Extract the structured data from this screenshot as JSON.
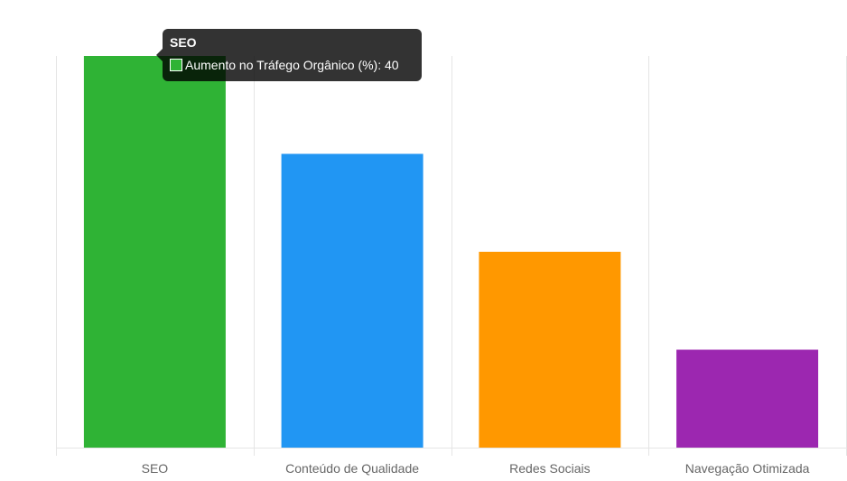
{
  "chart_data": {
    "type": "bar",
    "categories": [
      "SEO",
      "Conteúdo de Qualidade",
      "Redes Sociais",
      "Navegação Otimizada"
    ],
    "series": [
      {
        "name": "Aumento no Tráfego Orgânico (%)",
        "values": [
          40,
          30,
          20,
          10
        ]
      }
    ],
    "colors": [
      "#2fb335",
      "#2196f3",
      "#ff9800",
      "#9c27b0"
    ],
    "ylim": [
      0,
      40
    ],
    "grid": true,
    "y_ticks_visible": false,
    "legend": "none",
    "tooltip": {
      "title": "SEO",
      "series_label": "Aumento no Tráfego Orgânico (%)",
      "value": "40",
      "swatch_color": "#2fb335"
    }
  }
}
